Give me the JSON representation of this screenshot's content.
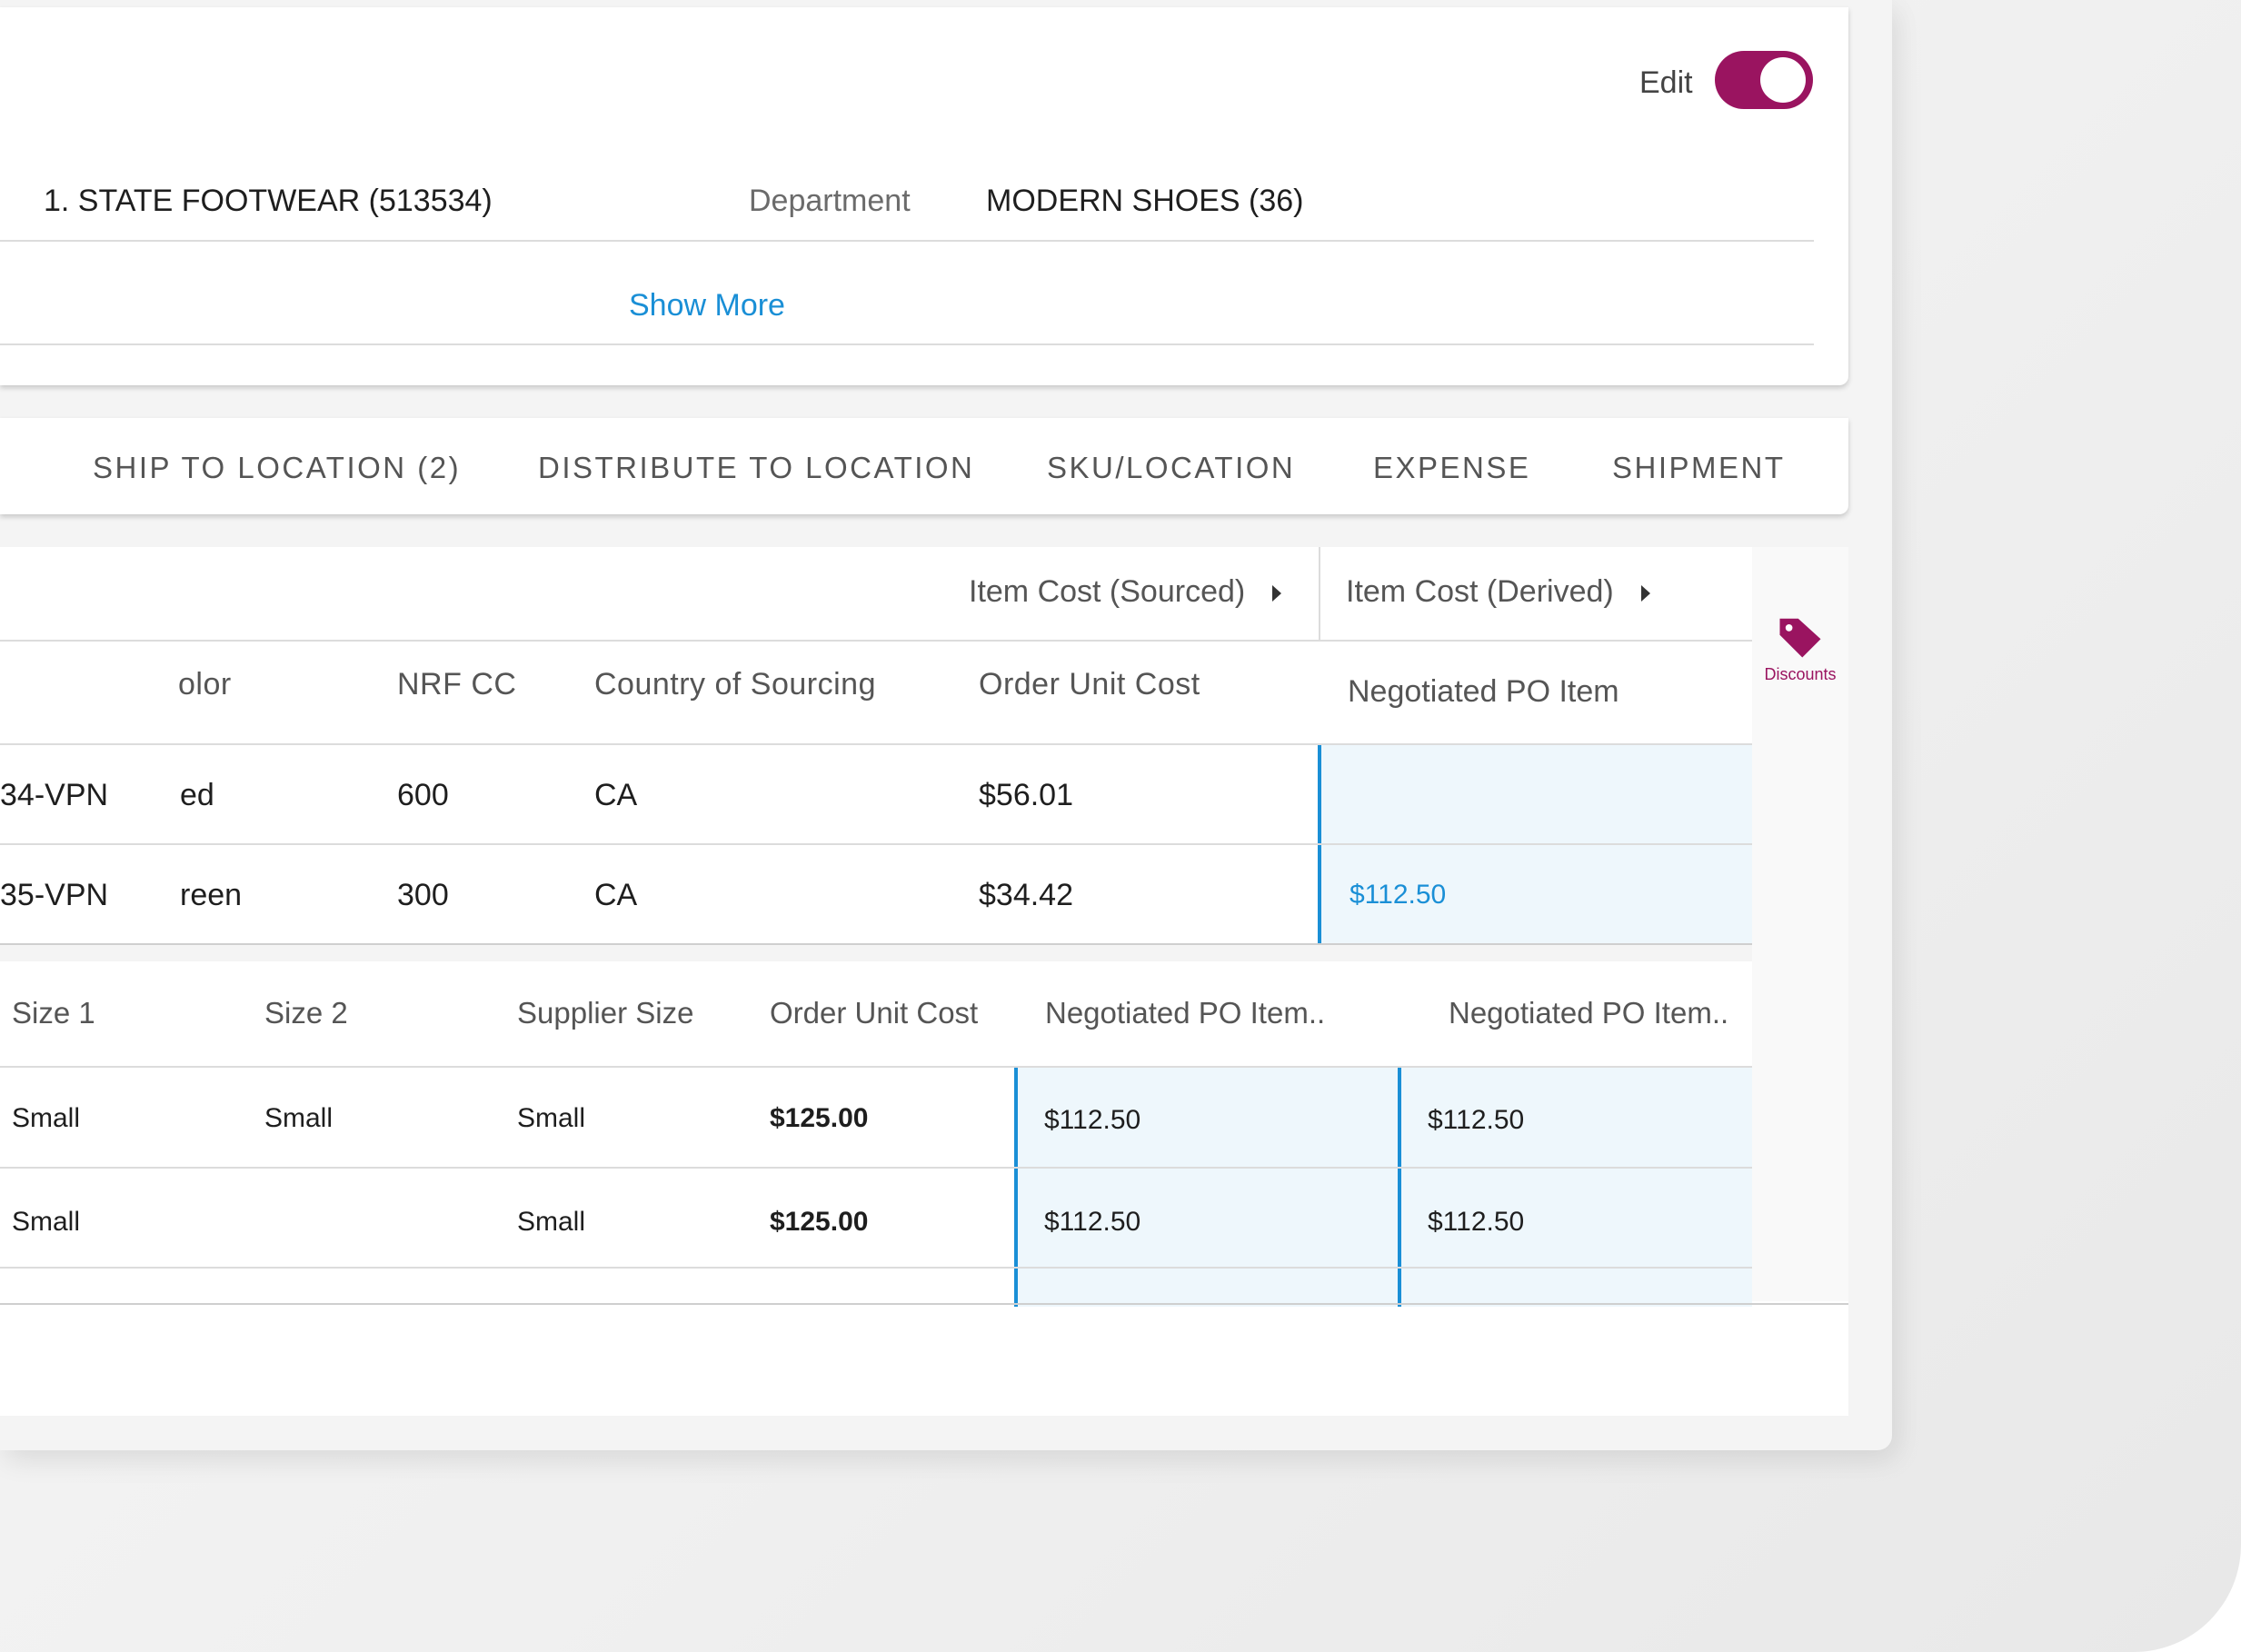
{
  "header": {
    "edit_label": "Edit",
    "supplier": "1. STATE FOOTWEAR (513534)",
    "department_label": "Department",
    "department_value": "MODERN SHOES (36)",
    "show_more": "Show More"
  },
  "tabs": [
    {
      "label": "SHIP TO LOCATION (2)"
    },
    {
      "label": "DISTRIBUTE TO LOCATION"
    },
    {
      "label": "SKU/LOCATION"
    },
    {
      "label": "EXPENSE"
    },
    {
      "label": "SHIPMENT"
    }
  ],
  "grid": {
    "group_headers": [
      "Item Cost (Sourced)",
      "Item Cost (Derived)"
    ],
    "columns": [
      "olor",
      "NRF CC",
      "Country of Sourcing",
      "Order Unit Cost",
      "Negotiated PO Item"
    ],
    "rows": [
      {
        "item": "34-VPN",
        "color": "ed",
        "nrf_cc": "600",
        "country": "CA",
        "order_unit_cost": "$56.01",
        "negotiated": ""
      },
      {
        "item": "35-VPN",
        "color": "reen",
        "nrf_cc": "300",
        "country": "CA",
        "order_unit_cost": "$34.42",
        "negotiated": "$112.50"
      }
    ]
  },
  "side_panel": {
    "discounts_label": "Discounts",
    "icon": "tag-icon",
    "accent": "#9a1460"
  },
  "subgrid": {
    "columns": [
      "Size 1",
      "Size 2",
      "Supplier Size",
      "Order Unit Cost",
      "Negotiated PO Item..",
      "Negotiated PO Item.."
    ],
    "rows": [
      {
        "size1": "Small",
        "size2": "Small",
        "supplier_size": "Small",
        "order_unit_cost": "$125.00",
        "neg1": "$112.50",
        "neg2": "$112.50"
      },
      {
        "size1": "Small",
        "size2": "",
        "supplier_size": "Small",
        "order_unit_cost": "$125.00",
        "neg1": "$112.50",
        "neg2": "$112.50"
      }
    ]
  },
  "colors": {
    "accent": "#9a1460",
    "link": "#1a8fd6",
    "highlight": "#eef7fc"
  }
}
